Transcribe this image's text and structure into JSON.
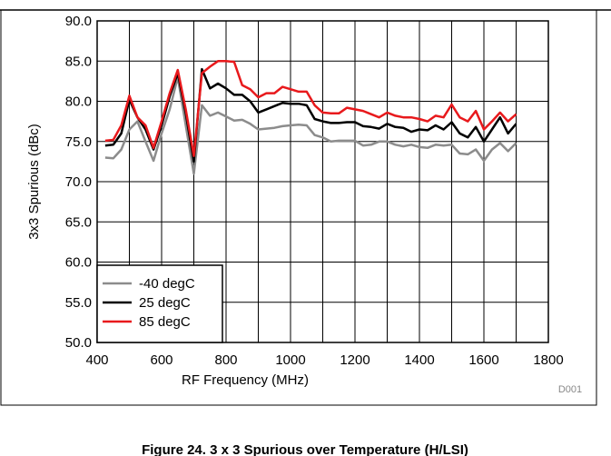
{
  "chart_data": {
    "type": "line",
    "x_label": "RF Frequency (MHz)",
    "y_label": "3x3 Spurious (dBc)",
    "note": "D001",
    "caption": "Figure 24. 3 x 3 Spurious over Temperature (H/LSI)",
    "x": [
      425,
      450,
      475,
      500,
      525,
      550,
      575,
      600,
      625,
      650,
      675,
      700,
      725,
      750,
      775,
      800,
      825,
      850,
      875,
      900,
      925,
      950,
      975,
      1000,
      1025,
      1050,
      1075,
      1100,
      1125,
      1150,
      1175,
      1200,
      1225,
      1250,
      1275,
      1300,
      1325,
      1350,
      1375,
      1400,
      1425,
      1450,
      1475,
      1500,
      1525,
      1550,
      1575,
      1600,
      1625,
      1650,
      1675,
      1700
    ],
    "series": [
      {
        "name": "-40 degC",
        "color": "#8c8c8c",
        "values": [
          73,
          72.9,
          74,
          76.5,
          77.5,
          75,
          72.6,
          76,
          79,
          83,
          77,
          71,
          79.5,
          78.2,
          78.6,
          78.1,
          77.6,
          77.7,
          77.2,
          76.5,
          76.6,
          76.7,
          76.9,
          77,
          77.1,
          77,
          75.8,
          75.5,
          75,
          75.1,
          75.1,
          75.1,
          74.5,
          74.6,
          75,
          75,
          74.6,
          74.4,
          74.6,
          74.3,
          74.2,
          74.6,
          74.5,
          74.6,
          73.5,
          73.4,
          74,
          72.6,
          74,
          74.8,
          73.8,
          74.8
        ]
      },
      {
        "name": "25 degC",
        "color": "#000000",
        "values": [
          74.5,
          74.6,
          76,
          80.2,
          78,
          76.5,
          74,
          77,
          80.6,
          83.5,
          78.5,
          72.5,
          84,
          81.6,
          82.2,
          81.6,
          80.8,
          80.8,
          80,
          78.6,
          79,
          79.4,
          79.8,
          79.7,
          79.7,
          79.5,
          77.8,
          77.5,
          77.3,
          77.3,
          77.4,
          77.4,
          76.9,
          76.8,
          76.6,
          77.2,
          76.8,
          76.7,
          76.2,
          76.5,
          76.4,
          77,
          76.5,
          77.4,
          76,
          75.5,
          76.8,
          75,
          76.5,
          78,
          76,
          77.2
        ]
      },
      {
        "name": "85 degC",
        "color": "#e8191c",
        "values": [
          75.1,
          75.2,
          77,
          80.7,
          78,
          77,
          74.2,
          77.5,
          81,
          83.9,
          79,
          73.2,
          83.5,
          84.3,
          85,
          85,
          84.9,
          82,
          81.5,
          80.5,
          81,
          81,
          81.8,
          81.5,
          81.2,
          81.2,
          79.5,
          78.6,
          78.5,
          78.5,
          79.2,
          79,
          78.8,
          78.4,
          78,
          78.6,
          78.2,
          78,
          78,
          77.8,
          77.5,
          78.2,
          78,
          79.6,
          78,
          77.5,
          78.8,
          76.5,
          77.5,
          78.6,
          77.5,
          78.4
        ]
      }
    ],
    "xlim": [
      400,
      1800
    ],
    "xticks": [
      400,
      600,
      800,
      1000,
      1200,
      1400,
      1600,
      1800
    ],
    "xminor_ticks": [
      500,
      700,
      900,
      1100,
      1300,
      1500,
      1700
    ],
    "ylim": [
      50,
      90
    ],
    "yticks": [
      {
        "value": 50,
        "label": "50.0"
      },
      {
        "value": 55,
        "label": "55.0"
      },
      {
        "value": 60,
        "label": "60.0"
      },
      {
        "value": 65,
        "label": "65.0"
      },
      {
        "value": 70,
        "label": "70.0"
      },
      {
        "value": 75,
        "label": "75.0"
      },
      {
        "value": 80,
        "label": "80.0"
      },
      {
        "value": 85,
        "label": "85.0"
      },
      {
        "value": 90,
        "label": "90.0"
      }
    ],
    "grid": true,
    "legend": "lower left"
  }
}
